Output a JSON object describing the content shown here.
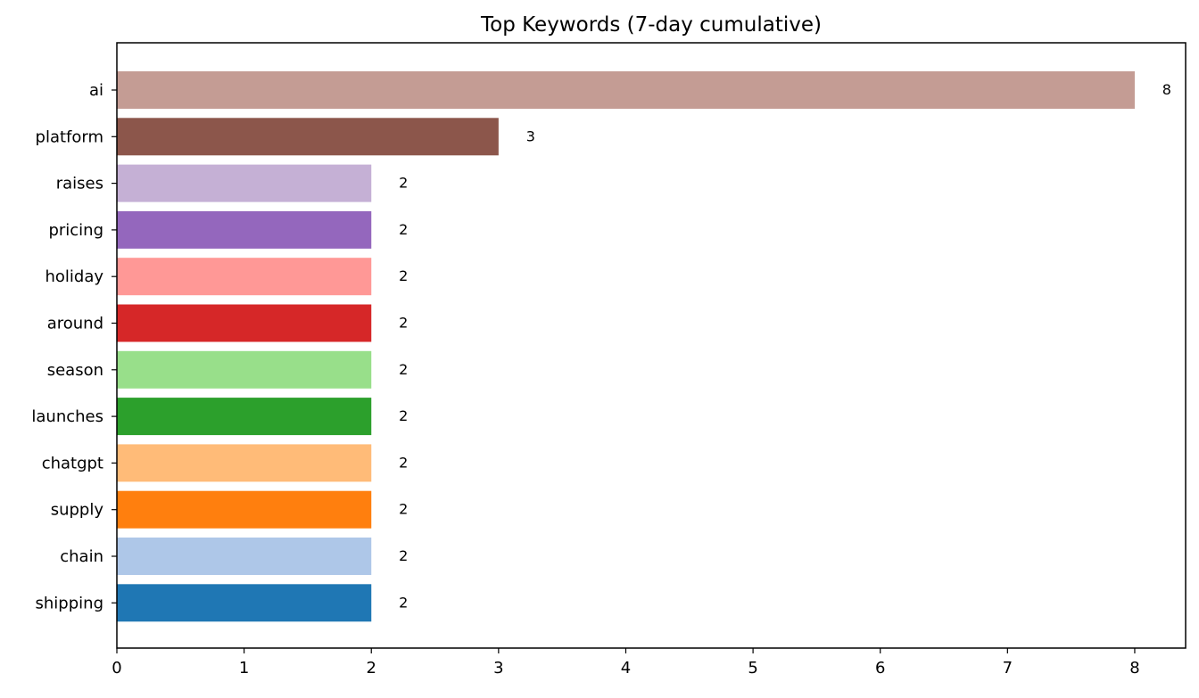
{
  "chart_data": {
    "type": "bar",
    "orientation": "horizontal",
    "title": "Top Keywords (7-day cumulative)",
    "xlabel": "",
    "ylabel": "",
    "xlim": [
      0,
      8.4
    ],
    "x_ticks": [
      "0",
      "1",
      "2",
      "3",
      "4",
      "5",
      "6",
      "7",
      "8"
    ],
    "grid": false,
    "legend": "none",
    "categories": [
      "ai",
      "platform",
      "raises",
      "pricing",
      "holiday",
      "around",
      "season",
      "launches",
      "chatgpt",
      "supply",
      "chain",
      "shipping"
    ],
    "values": [
      8,
      3,
      2,
      2,
      2,
      2,
      2,
      2,
      2,
      2,
      2,
      2
    ],
    "value_labels": [
      "8",
      "3",
      "2",
      "2",
      "2",
      "2",
      "2",
      "2",
      "2",
      "2",
      "2",
      "2"
    ],
    "colors": [
      "#c49c94",
      "#8c564b",
      "#c5b0d5",
      "#9467bd",
      "#ff9896",
      "#d62728",
      "#98df8a",
      "#2ca02c",
      "#ffbb78",
      "#ff7f0e",
      "#aec7e8",
      "#1f77b4"
    ]
  }
}
